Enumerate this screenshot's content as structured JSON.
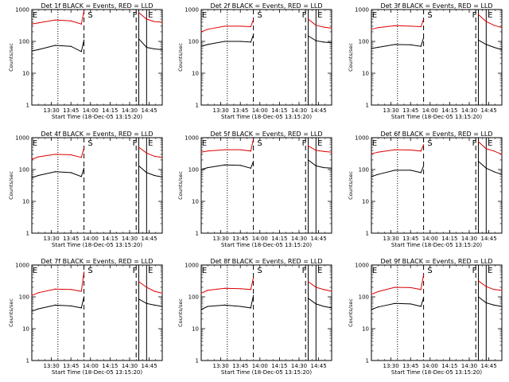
{
  "figure": {
    "xlabel": "Start Time (18-Dec-05 13:15:20)",
    "ylabel": "Counts/sec",
    "x_tick_labels": [
      "13:30",
      "13:45",
      "14:00",
      "14:15",
      "14:30",
      "14:45"
    ],
    "y_tick_labels": [
      "1",
      "10",
      "100",
      "1000"
    ],
    "colors": {
      "events": "#000000",
      "lld": "#dd0000"
    }
  },
  "chart_data": [
    {
      "type": "line",
      "title": "Det 1f BLACK = Events, RED = LLD",
      "markers": [
        "E",
        "S",
        "F",
        "E"
      ],
      "x_minutes_from_start": [
        0,
        100
      ],
      "ylim": [
        1,
        1000
      ],
      "y_scale": "log",
      "series": [
        {
          "values": [
            50,
            55,
            75,
            70,
            48,
            110,
            null,
            null,
            null,
            120,
            65,
            58,
            55
          ]
        },
        {
          "values": [
            350,
            380,
            470,
            440,
            350,
            900,
            null,
            null,
            null,
            800,
            500,
            420,
            400
          ]
        }
      ],
      "x": [
        0,
        5,
        18,
        30,
        38,
        40,
        55,
        70,
        80,
        82,
        88,
        94,
        100
      ],
      "dotted_line_x": 20,
      "dashed_line_x": [
        40,
        80
      ],
      "solid_line_x": [
        82,
        88
      ]
    },
    {
      "type": "line",
      "title": "Det 2f BLACK = Events, RED = LLD",
      "markers": [
        "E",
        "S",
        "F",
        "E"
      ],
      "x_minutes_from_start": [
        0,
        100
      ],
      "ylim": [
        1,
        1000
      ],
      "y_scale": "log",
      "series": [
        {
          "values": [
            70,
            80,
            100,
            100,
            95,
            160,
            null,
            null,
            null,
            150,
            105,
            95,
            90
          ]
        },
        {
          "values": [
            200,
            240,
            300,
            300,
            290,
            480,
            null,
            null,
            null,
            500,
            320,
            280,
            260
          ]
        }
      ],
      "x": [
        0,
        5,
        18,
        30,
        38,
        40,
        55,
        70,
        80,
        82,
        88,
        94,
        100
      ],
      "dotted_line_x": 20,
      "dashed_line_x": [
        40,
        80
      ],
      "solid_line_x": [
        82,
        88
      ]
    },
    {
      "type": "line",
      "title": "Det 3f BLACK = Events, RED = LLD",
      "markers": [
        "E",
        "S",
        "F",
        "E"
      ],
      "x_minutes_from_start": [
        0,
        100
      ],
      "ylim": [
        1,
        1000
      ],
      "y_scale": "log",
      "series": [
        {
          "values": [
            60,
            65,
            80,
            78,
            70,
            130,
            null,
            null,
            null,
            110,
            80,
            65,
            55
          ]
        },
        {
          "values": [
            240,
            270,
            310,
            300,
            290,
            500,
            null,
            null,
            null,
            700,
            420,
            320,
            270
          ]
        }
      ],
      "x": [
        0,
        5,
        18,
        30,
        38,
        40,
        55,
        70,
        80,
        82,
        88,
        94,
        100
      ],
      "dotted_line_x": 20,
      "dashed_line_x": [
        40,
        80
      ],
      "solid_line_x": [
        82,
        88
      ]
    },
    {
      "type": "line",
      "title": "Det 4f BLACK = Events, RED = LLD",
      "markers": [
        "E",
        "S",
        "F",
        "E"
      ],
      "x_minutes_from_start": [
        0,
        100
      ],
      "ylim": [
        1,
        1000
      ],
      "y_scale": "log",
      "series": [
        {
          "values": [
            55,
            65,
            85,
            80,
            60,
            110,
            null,
            null,
            null,
            130,
            80,
            65,
            58
          ]
        },
        {
          "values": [
            210,
            250,
            300,
            290,
            240,
            480,
            null,
            null,
            null,
            500,
            330,
            260,
            240
          ]
        }
      ],
      "x": [
        0,
        5,
        18,
        30,
        38,
        40,
        55,
        70,
        80,
        82,
        88,
        94,
        100
      ],
      "dotted_line_x": 20,
      "dashed_line_x": [
        40,
        80
      ],
      "solid_line_x": [
        82,
        88
      ]
    },
    {
      "type": "line",
      "title": "Det 5f BLACK = Events, RED = LLD",
      "markers": [
        "E",
        "S",
        "F",
        "E"
      ],
      "x_minutes_from_start": [
        0,
        100
      ],
      "ylim": [
        1,
        1000
      ],
      "y_scale": "log",
      "series": [
        {
          "values": [
            100,
            115,
            140,
            135,
            110,
            180,
            null,
            null,
            null,
            200,
            130,
            115,
            110
          ]
        },
        {
          "values": [
            350,
            380,
            420,
            420,
            380,
            900,
            null,
            null,
            null,
            550,
            400,
            370,
            350
          ]
        }
      ],
      "x": [
        0,
        5,
        18,
        30,
        38,
        40,
        55,
        70,
        80,
        82,
        88,
        94,
        100
      ],
      "dotted_line_x": 20,
      "dashed_line_x": [
        40,
        80
      ],
      "solid_line_x": [
        82,
        88
      ]
    },
    {
      "type": "line",
      "title": "Det 6f BLACK = Events, RED = LLD",
      "markers": [
        "E",
        "S",
        "F",
        "E"
      ],
      "x_minutes_from_start": [
        0,
        100
      ],
      "ylim": [
        1,
        1000
      ],
      "y_scale": "log",
      "series": [
        {
          "values": [
            60,
            70,
            95,
            95,
            80,
            130,
            null,
            null,
            null,
            180,
            110,
            85,
            70
          ]
        },
        {
          "values": [
            310,
            350,
            420,
            410,
            380,
            600,
            null,
            null,
            null,
            750,
            450,
            380,
            300
          ]
        }
      ],
      "x": [
        0,
        5,
        18,
        30,
        38,
        40,
        55,
        70,
        80,
        82,
        88,
        94,
        100
      ],
      "dotted_line_x": 20,
      "dashed_line_x": [
        40,
        80
      ],
      "solid_line_x": [
        82,
        88
      ]
    },
    {
      "type": "line",
      "title": "Det 7f BLACK = Events, RED = LLD",
      "markers": [
        "E",
        "S",
        "F",
        "E"
      ],
      "x_minutes_from_start": [
        0,
        100
      ],
      "ylim": [
        1,
        1000
      ],
      "y_scale": "log",
      "series": [
        {
          "values": [
            35,
            42,
            55,
            52,
            45,
            100,
            null,
            null,
            null,
            85,
            62,
            55,
            50
          ]
        },
        {
          "values": [
            110,
            135,
            175,
            170,
            150,
            600,
            null,
            null,
            null,
            300,
            200,
            150,
            130
          ]
        }
      ],
      "x": [
        0,
        5,
        18,
        30,
        38,
        40,
        55,
        70,
        80,
        82,
        88,
        94,
        100
      ],
      "dotted_line_x": 20,
      "dashed_line_x": [
        40,
        80
      ],
      "solid_line_x": [
        82,
        88
      ]
    },
    {
      "type": "line",
      "title": "Det 8f BLACK = Events, RED = LLD",
      "markers": [
        "E",
        "S",
        "F",
        "E"
      ],
      "x_minutes_from_start": [
        0,
        100
      ],
      "ylim": [
        1,
        1000
      ],
      "y_scale": "log",
      "series": [
        {
          "values": [
            40,
            50,
            55,
            50,
            45,
            110,
            null,
            null,
            null,
            90,
            60,
            50,
            45
          ]
        },
        {
          "values": [
            130,
            160,
            185,
            180,
            170,
            400,
            null,
            null,
            null,
            300,
            200,
            170,
            150
          ]
        }
      ],
      "x": [
        0,
        5,
        18,
        30,
        38,
        40,
        55,
        70,
        80,
        82,
        88,
        94,
        100
      ],
      "dotted_line_x": 20,
      "dashed_line_x": [
        40,
        80
      ],
      "solid_line_x": [
        82,
        88
      ]
    },
    {
      "type": "line",
      "title": "Det 9f BLACK = Events, RED = LLD",
      "markers": [
        "E",
        "S",
        "F",
        "E"
      ],
      "x_minutes_from_start": [
        0,
        100
      ],
      "ylim": [
        1,
        1000
      ],
      "y_scale": "log",
      "series": [
        {
          "values": [
            40,
            48,
            62,
            60,
            50,
            95,
            null,
            null,
            null,
            100,
            65,
            55,
            50
          ]
        },
        {
          "values": [
            120,
            145,
            200,
            195,
            170,
            500,
            null,
            null,
            null,
            320,
            210,
            170,
            160
          ]
        }
      ],
      "x": [
        0,
        5,
        18,
        30,
        38,
        40,
        55,
        70,
        80,
        82,
        88,
        94,
        100
      ],
      "dotted_line_x": 20,
      "dashed_line_x": [
        40,
        80
      ],
      "solid_line_x": [
        82,
        88
      ]
    }
  ]
}
